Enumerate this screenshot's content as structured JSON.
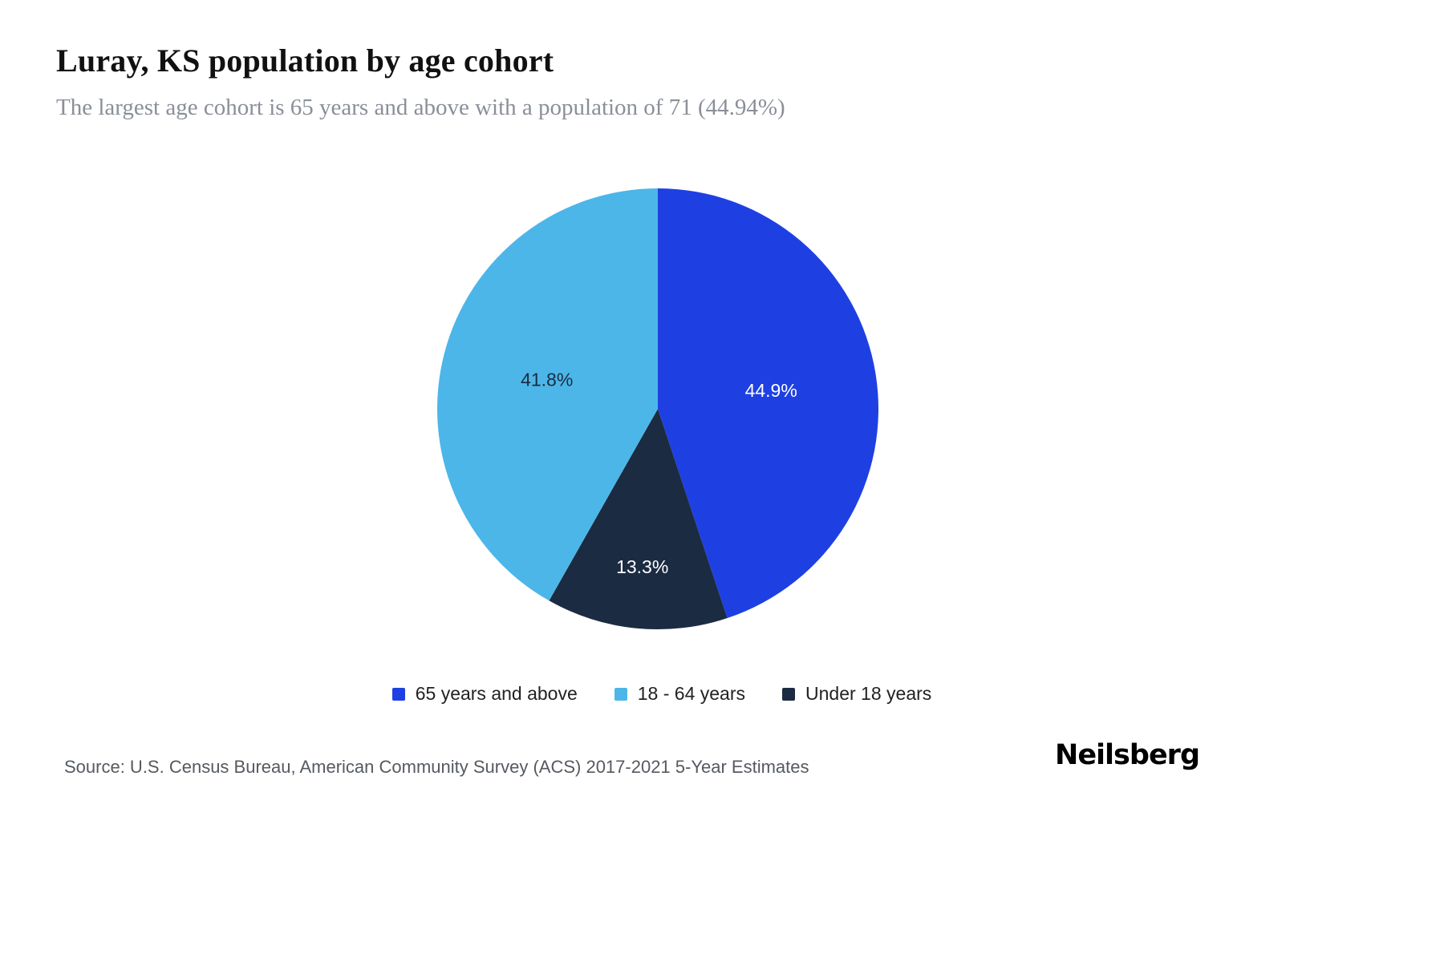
{
  "header": {
    "title": "Luray, KS population by age cohort",
    "subtitle": "The largest age cohort is 65 years and above with a population of 71 (44.94%)"
  },
  "chart_data": {
    "type": "pie",
    "title": "Luray, KS population by age cohort",
    "direction": "clockwise",
    "start_angle_deg": 0,
    "legend_position": "bottom",
    "slices": [
      {
        "label": "65 years and above",
        "value": 44.9,
        "display": "44.9%",
        "color": "#1e40e3",
        "label_color": "#ffffff"
      },
      {
        "label": "Under 18 years",
        "value": 13.3,
        "display": "13.3%",
        "color": "#1b2b42",
        "label_color": "#ffffff"
      },
      {
        "label": "18 - 64 years",
        "value": 41.8,
        "display": "41.8%",
        "color": "#4cb6e8",
        "label_color": "#1b2b42"
      }
    ]
  },
  "legend": {
    "items": [
      {
        "label": "65 years and above",
        "color": "#1e40e3"
      },
      {
        "label": "18 - 64 years",
        "color": "#4cb6e8"
      },
      {
        "label": "Under 18 years",
        "color": "#1b2b42"
      }
    ]
  },
  "footer": {
    "source": "Source: U.S. Census Bureau, American Community Survey (ACS) 2017-2021 5-Year Estimates",
    "brand": "Neilsberg"
  }
}
